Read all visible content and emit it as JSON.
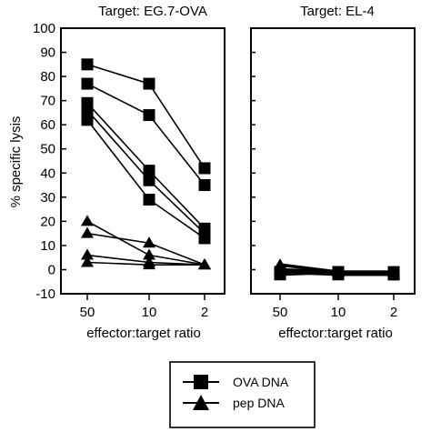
{
  "colors": {
    "ink": "#000000",
    "background": "#ffffff"
  },
  "legend": {
    "items": [
      {
        "label": "OVA DNA",
        "marker": "square"
      },
      {
        "label": "pep DNA",
        "marker": "triangle"
      }
    ]
  },
  "chart_data": [
    {
      "type": "line",
      "title": "Target:  EG.7-OVA",
      "xlabel": "effector:target ratio",
      "ylabel": "% specific lysis",
      "categories": [
        "50",
        "10",
        "2"
      ],
      "ylim": [
        -10,
        100
      ],
      "yticks": [
        -10,
        0,
        10,
        20,
        30,
        40,
        50,
        60,
        70,
        80,
        90,
        100
      ],
      "grid": false,
      "series": [
        {
          "group": "OVA DNA",
          "marker": "square",
          "values": [
            85,
            77,
            42
          ]
        },
        {
          "group": "OVA DNA",
          "marker": "square",
          "values": [
            77,
            64,
            35
          ]
        },
        {
          "group": "OVA DNA",
          "marker": "square",
          "values": [
            69,
            41,
            17
          ]
        },
        {
          "group": "OVA DNA",
          "marker": "square",
          "values": [
            66,
            37,
            15
          ]
        },
        {
          "group": "OVA DNA",
          "marker": "square",
          "values": [
            62,
            29,
            13
          ]
        },
        {
          "group": "pep DNA",
          "marker": "triangle",
          "values": [
            20,
            6,
            2
          ]
        },
        {
          "group": "pep DNA",
          "marker": "triangle",
          "values": [
            15,
            11,
            2
          ]
        },
        {
          "group": "pep DNA",
          "marker": "triangle",
          "values": [
            6,
            3,
            2
          ]
        },
        {
          "group": "pep DNA",
          "marker": "triangle",
          "values": [
            3,
            2,
            2
          ]
        }
      ]
    },
    {
      "type": "line",
      "title": "Target:  EL-4",
      "xlabel": "effector:target ratio",
      "categories": [
        "50",
        "10",
        "2"
      ],
      "ylim": [
        -10,
        100
      ],
      "grid": false,
      "series": [
        {
          "group": "OVA DNA",
          "marker": "square",
          "values": [
            -1,
            -1,
            -1
          ]
        },
        {
          "group": "OVA DNA",
          "marker": "square",
          "values": [
            -2,
            -1,
            -2
          ]
        },
        {
          "group": "OVA DNA",
          "marker": "square",
          "values": [
            -1,
            -2,
            -2
          ]
        },
        {
          "group": "pep DNA",
          "marker": "triangle",
          "values": [
            2,
            -1,
            -1
          ]
        },
        {
          "group": "pep DNA",
          "marker": "triangle",
          "values": [
            0,
            -1,
            -2
          ]
        }
      ]
    }
  ]
}
